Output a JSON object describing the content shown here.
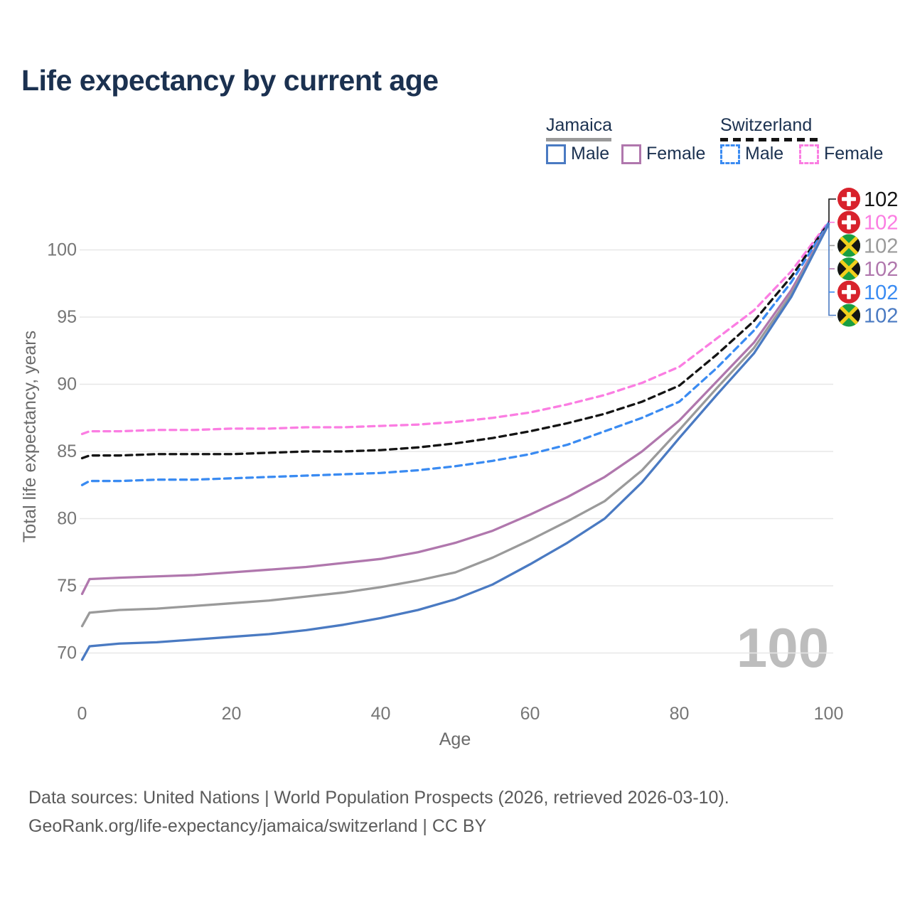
{
  "header": {
    "title": "Life expectancy by current age"
  },
  "legend": {
    "groups": [
      {
        "country": "Jamaica",
        "line_style": "solid",
        "items": [
          {
            "label": "Male",
            "color": "#4a7ac2"
          },
          {
            "label": "Female",
            "color": "#b077ad"
          }
        ]
      },
      {
        "country": "Switzerland",
        "line_style": "dashed",
        "items": [
          {
            "label": "Male",
            "color": "#3a8bf2"
          },
          {
            "label": "Female",
            "color": "#fb7de2"
          }
        ]
      }
    ]
  },
  "chart_data": {
    "type": "line",
    "title": "Life expectancy by current age",
    "xlabel": "Age",
    "ylabel": "Total life expectancy, years",
    "x_ticks": [
      0,
      20,
      40,
      60,
      80,
      100
    ],
    "y_ticks": [
      70,
      75,
      80,
      85,
      90,
      95,
      100
    ],
    "xlim": [
      0,
      100
    ],
    "ylim": [
      69,
      102.5
    ],
    "grid": "horizontal-only",
    "legend_position": "top-right",
    "age_indicator": "100",
    "x": [
      0,
      1,
      5,
      10,
      15,
      20,
      25,
      30,
      35,
      40,
      45,
      50,
      55,
      60,
      65,
      70,
      75,
      80,
      85,
      90,
      95,
      100
    ],
    "series": [
      {
        "name": "Switzerland Female",
        "country": "Switzerland",
        "sex": "female",
        "color": "#fb7de2",
        "dash": true,
        "values": [
          86.3,
          86.5,
          86.5,
          86.6,
          86.6,
          86.7,
          86.7,
          86.8,
          86.8,
          86.9,
          87.0,
          87.2,
          87.5,
          87.9,
          88.5,
          89.2,
          90.1,
          91.3,
          93.4,
          95.5,
          98.4,
          102.1
        ]
      },
      {
        "name": "Switzerland",
        "country": "Switzerland",
        "sex": "both",
        "color": "#141414",
        "dash": true,
        "values": [
          84.5,
          84.7,
          84.7,
          84.8,
          84.8,
          84.8,
          84.9,
          85.0,
          85.0,
          85.1,
          85.3,
          85.6,
          86.0,
          86.5,
          87.1,
          87.8,
          88.7,
          89.9,
          92.2,
          94.7,
          98.0,
          102.0
        ]
      },
      {
        "name": "Switzerland Male",
        "country": "Switzerland",
        "sex": "male",
        "color": "#3a8bf2",
        "dash": true,
        "values": [
          82.5,
          82.8,
          82.8,
          82.9,
          82.9,
          83.0,
          83.1,
          83.2,
          83.3,
          83.4,
          83.6,
          83.9,
          84.3,
          84.8,
          85.5,
          86.5,
          87.5,
          88.7,
          91.2,
          94.0,
          97.6,
          102.0
        ]
      },
      {
        "name": "Jamaica Female",
        "country": "Jamaica",
        "sex": "female",
        "color": "#b077ad",
        "dash": false,
        "values": [
          74.4,
          75.5,
          75.6,
          75.7,
          75.8,
          76.0,
          76.2,
          76.4,
          76.7,
          77.0,
          77.5,
          78.2,
          79.1,
          80.3,
          81.6,
          83.1,
          85.0,
          87.3,
          90.2,
          93.1,
          97.0,
          101.9
        ]
      },
      {
        "name": "Jamaica",
        "country": "Jamaica",
        "sex": "both",
        "color": "#9a9a9a",
        "dash": false,
        "values": [
          72.0,
          73.0,
          73.2,
          73.3,
          73.5,
          73.7,
          73.9,
          74.2,
          74.5,
          74.9,
          75.4,
          76.0,
          77.1,
          78.4,
          79.8,
          81.3,
          83.6,
          86.6,
          89.7,
          92.7,
          96.7,
          101.9
        ]
      },
      {
        "name": "Jamaica Male",
        "country": "Jamaica",
        "sex": "male",
        "color": "#4a7ac2",
        "dash": false,
        "values": [
          69.5,
          70.5,
          70.7,
          70.8,
          71.0,
          71.2,
          71.4,
          71.7,
          72.1,
          72.6,
          73.2,
          74.0,
          75.1,
          76.6,
          78.2,
          80.0,
          82.7,
          86.0,
          89.2,
          92.3,
          96.5,
          101.9
        ]
      }
    ],
    "end_labels": [
      {
        "text": "102",
        "flag": "switzerland",
        "color": "#141414",
        "series": "Switzerland"
      },
      {
        "text": "102",
        "flag": "switzerland",
        "color": "#fb7de2",
        "series": "Switzerland Female"
      },
      {
        "text": "102",
        "flag": "jamaica",
        "color": "#9a9a9a",
        "series": "Jamaica"
      },
      {
        "text": "102",
        "flag": "jamaica",
        "color": "#b077ad",
        "series": "Jamaica Female"
      },
      {
        "text": "102",
        "flag": "switzerland",
        "color": "#3a8bf2",
        "series": "Switzerland Male"
      },
      {
        "text": "102",
        "flag": "jamaica",
        "color": "#4a7ac2",
        "series": "Jamaica Male"
      }
    ]
  },
  "footer": {
    "line1": "Data sources: United Nations | World Population Prospects (2026, retrieved 2026-03-10).",
    "line2": "GeoRank.org/life-expectancy/jamaica/switzerland | CC BY"
  }
}
